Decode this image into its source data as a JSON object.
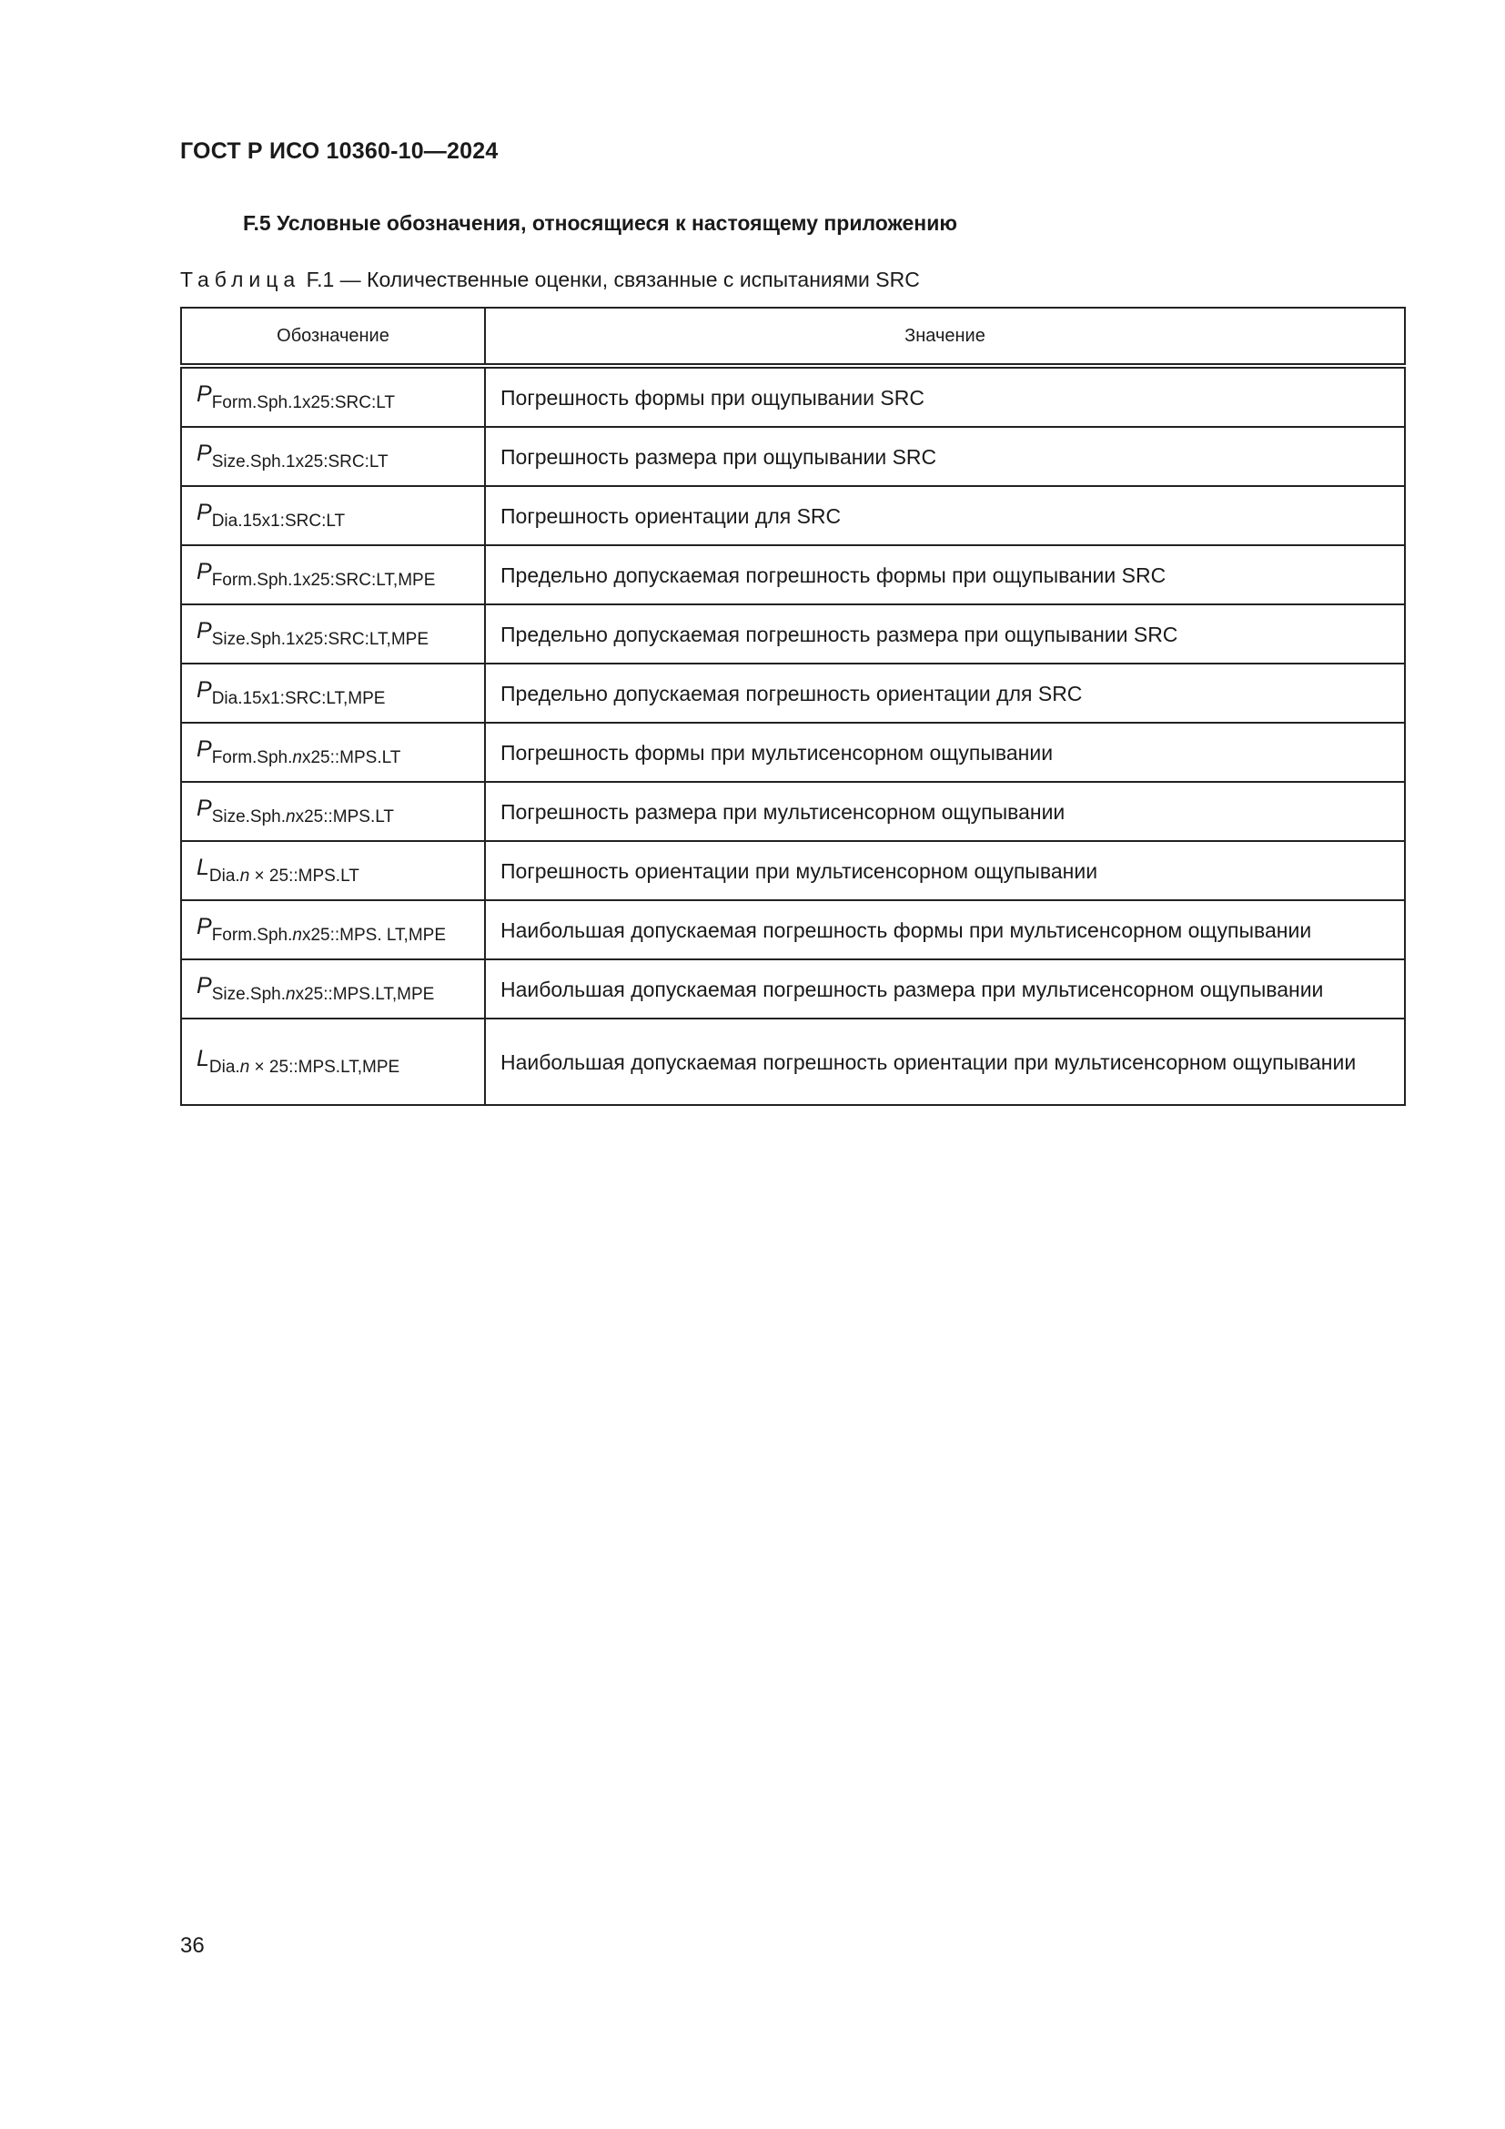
{
  "header": {
    "doc_id": "ГОСТ Р ИСО 10360-10—2024"
  },
  "section": {
    "heading": "F.5  Условные обозначения, относящиеся к настоящему приложению"
  },
  "table": {
    "caption_label": "Таблица",
    "caption_text": "F.1 — Количественные оценки, связанные с испытаниями SRC",
    "columns": [
      "Обозначение",
      "Значение"
    ],
    "rows": [
      {
        "base": "P",
        "sub_pre": "Form.Sph.1x25:SRC:LT",
        "sub_it": "",
        "sub_post": "",
        "meaning": "Погрешность формы при ощупывании SRC"
      },
      {
        "base": "P",
        "sub_pre": "Size.Sph.1x25:SRC:LT",
        "sub_it": "",
        "sub_post": "",
        "meaning": "Погрешность размера при ощупывании SRC"
      },
      {
        "base": "P",
        "sub_pre": "Dia.15x1:SRC:LT",
        "sub_it": "",
        "sub_post": "",
        "meaning": "Погрешность ориентации для SRC"
      },
      {
        "base": "P",
        "sub_pre": "Form.Sph.1x25:SRC:LT,MPE",
        "sub_it": "",
        "sub_post": "",
        "meaning": "Предельно допускаемая погрешность формы при ощупывании SRC"
      },
      {
        "base": "P",
        "sub_pre": "Size.Sph.1x25:SRC:LT,MPE",
        "sub_it": "",
        "sub_post": "",
        "meaning": "Предельно допускаемая погрешность размера при ощупывании SRC"
      },
      {
        "base": "P",
        "sub_pre": "Dia.15x1:SRC:LT,MPE",
        "sub_it": "",
        "sub_post": "",
        "meaning": "Предельно допускаемая погрешность ориентации для SRC"
      },
      {
        "base": "P",
        "sub_pre": "Form.Sph.",
        "sub_it": "n",
        "sub_post": "x25::MPS.LT",
        "meaning": "Погрешность формы при мультисенсорном ощупывании"
      },
      {
        "base": "P",
        "sub_pre": "Size.Sph.",
        "sub_it": "n",
        "sub_post": "x25::MPS.LT",
        "meaning": "Погрешность размера при мультисенсорном ощупывании"
      },
      {
        "base": "L",
        "sub_pre": "Dia.",
        "sub_it": "n",
        "sub_post": " × 25::MPS.LT",
        "meaning": "Погрешность ориентации при мультисенсорном ощупывании"
      },
      {
        "base": "P",
        "sub_pre": "Form.Sph.",
        "sub_it": "n",
        "sub_post": "x25::MPS. LT,MPE",
        "meaning": "Наибольшая допускаемая погрешность формы при мультисенсорном ощупывании"
      },
      {
        "base": "P",
        "sub_pre": "Size.Sph.",
        "sub_it": "n",
        "sub_post": "x25::MPS.LT,MPE",
        "meaning": "Наибольшая допускаемая погрешность размера при мультисенсорном ощупывании"
      },
      {
        "base": "L",
        "sub_pre": "Dia.",
        "sub_it": "n",
        "sub_post": " × 25::MPS.LT,MPE",
        "meaning": "Наибольшая допускаемая погрешность ориентации при мультисенсорном ощупы­вании"
      }
    ]
  },
  "footer": {
    "page_number": "36"
  }
}
